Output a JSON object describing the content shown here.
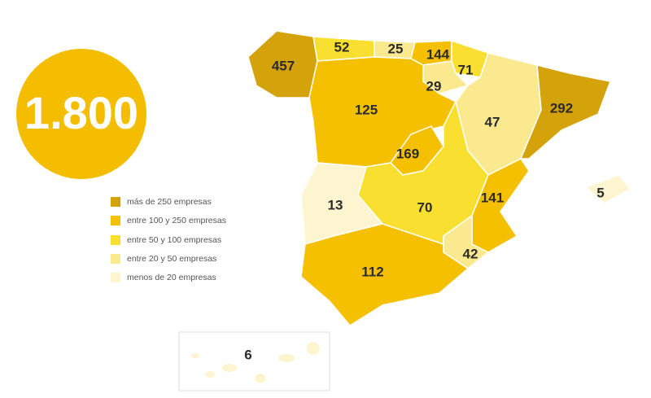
{
  "total": "1.800",
  "legend": [
    {
      "label": "más de 250 empresas",
      "color": "#d4a20a"
    },
    {
      "label": "entre 100 y 250 empresas",
      "color": "#f5c000"
    },
    {
      "label": "entre 50 y 100 empresas",
      "color": "#f9e030"
    },
    {
      "label": "entre 20 y 50 empresas",
      "color": "#fbe98f"
    },
    {
      "label": "menos de 20 empresas",
      "color": "#fdf5d0"
    }
  ],
  "regions": [
    {
      "value": 457,
      "color": "#d4a20a"
    },
    {
      "value": 52,
      "color": "#f9e030"
    },
    {
      "value": 25,
      "color": "#fbe98f"
    },
    {
      "value": 144,
      "color": "#f5c000"
    },
    {
      "value": 71,
      "color": "#f9e030"
    },
    {
      "value": 29,
      "color": "#fbe98f"
    },
    {
      "value": 125,
      "color": "#f5c000"
    },
    {
      "value": 47,
      "color": "#fbe98f"
    },
    {
      "value": 292,
      "color": "#d4a20a"
    },
    {
      "value": 169,
      "color": "#f5c000"
    },
    {
      "value": 70,
      "color": "#f9e030"
    },
    {
      "value": 13,
      "color": "#fdf5d0"
    },
    {
      "value": 141,
      "color": "#f5c000"
    },
    {
      "value": 42,
      "color": "#fbe98f"
    },
    {
      "value": 112,
      "color": "#f5c000"
    },
    {
      "value": 5,
      "color": "#fdf5d0"
    },
    {
      "value": 6,
      "color": "#fdf5d0"
    }
  ]
}
